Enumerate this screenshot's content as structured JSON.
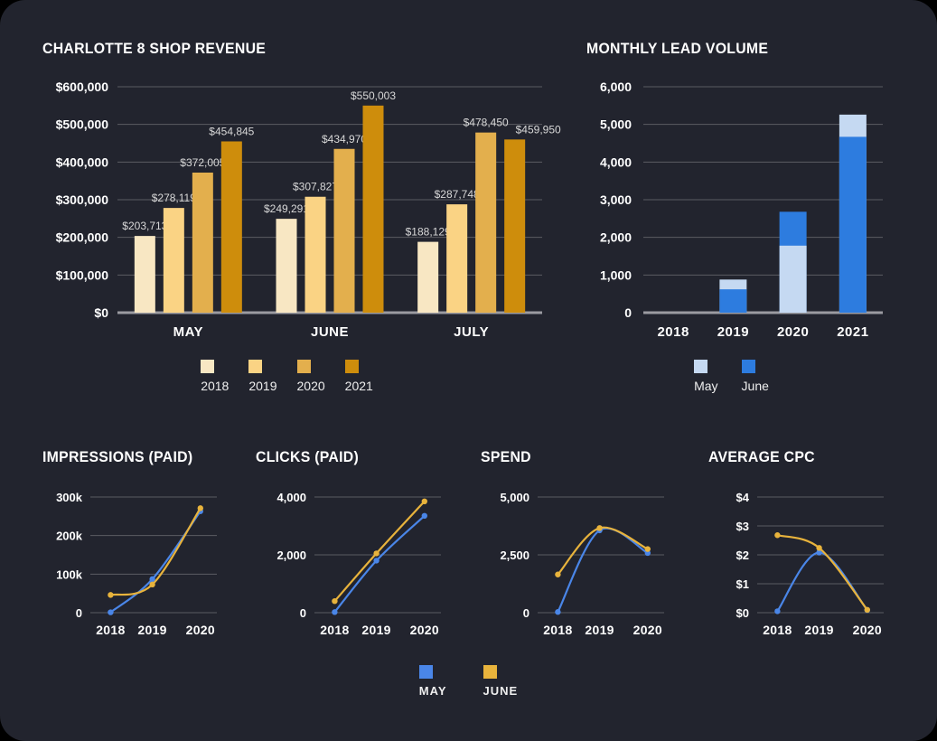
{
  "page": {
    "background": "#22242e",
    "gridline_color": "#5b5c63",
    "axis_color": "#9b9ba1",
    "text_color": "#ffffff",
    "value_label_color": "#d8d8d8"
  },
  "chart_data": [
    {
      "id": "revenue",
      "type": "bar",
      "title": "CHARLOTTE 8 SHOP REVENUE",
      "categories": [
        "MAY",
        "JUNE",
        "JULY"
      ],
      "ylim": [
        0,
        600000
      ],
      "yticks": [
        "$0",
        "$100,000",
        "$200,000",
        "$300,000",
        "$400,000",
        "$500,000",
        "$600,000"
      ],
      "grid": true,
      "legend_position": "bottom",
      "series": [
        {
          "name": "2018",
          "color": "#f8e7c3",
          "values": [
            203713,
            249291,
            188129
          ],
          "labels": [
            "$203,713",
            "$249,291",
            "$188,129"
          ]
        },
        {
          "name": "2019",
          "color": "#fad384",
          "values": [
            278119,
            307827,
            287748
          ],
          "labels": [
            "$278,119",
            "$307,827",
            "$287,748"
          ]
        },
        {
          "name": "2020",
          "color": "#e3af4d",
          "values": [
            372005,
            434970,
            478450
          ],
          "labels": [
            "$372,005",
            "$434,970",
            "$478,450"
          ]
        },
        {
          "name": "2021",
          "color": "#ce8d0c",
          "values": [
            454845,
            550003,
            459950
          ],
          "labels": [
            "$454,845",
            "$550,003",
            "$459,950"
          ]
        }
      ]
    },
    {
      "id": "leads",
      "type": "overlap-bar",
      "title": "MONTHLY LEAD VOLUME",
      "categories": [
        "2018",
        "2019",
        "2020",
        "2021"
      ],
      "ylim": [
        0,
        6000
      ],
      "yticks": [
        "0",
        "1,000",
        "2,000",
        "3,000",
        "4,000",
        "5,000",
        "6,000"
      ],
      "grid": true,
      "legend_position": "bottom",
      "series": [
        {
          "name": "May",
          "color": "#c5d9f2",
          "values": [
            0,
            880,
            1780,
            5260
          ]
        },
        {
          "name": "June",
          "color": "#2d7cdf",
          "values": [
            0,
            620,
            2680,
            4670
          ]
        }
      ]
    },
    {
      "id": "impressions",
      "type": "line",
      "title": "IMPRESSIONS (PAID)",
      "x": [
        "2018",
        "2019",
        "2020"
      ],
      "ylim": [
        0,
        300000
      ],
      "yticks": [
        "0",
        "100k",
        "200k",
        "300k"
      ],
      "grid": true,
      "series": [
        {
          "name": "MAY",
          "color": "#4a86e8",
          "values": [
            1000,
            87000,
            263000
          ]
        },
        {
          "name": "JUNE",
          "color": "#e8b33c",
          "values": [
            46000,
            73000,
            271000
          ]
        }
      ]
    },
    {
      "id": "clicks",
      "type": "line",
      "title": "CLICKS (PAID)",
      "x": [
        "2018",
        "2019",
        "2020"
      ],
      "ylim": [
        0,
        4000
      ],
      "yticks": [
        "0",
        "2,000",
        "4,000"
      ],
      "grid": true,
      "series": [
        {
          "name": "MAY",
          "color": "#4a86e8",
          "values": [
            20,
            1800,
            3350
          ]
        },
        {
          "name": "JUNE",
          "color": "#e8b33c",
          "values": [
            400,
            2050,
            3850
          ]
        }
      ]
    },
    {
      "id": "spend",
      "type": "line",
      "title": "SPEND",
      "x": [
        "2018",
        "2019",
        "2020"
      ],
      "ylim": [
        0,
        5000
      ],
      "yticks": [
        "0",
        "2,500",
        "5,000"
      ],
      "grid": true,
      "series": [
        {
          "name": "MAY",
          "color": "#4a86e8",
          "values": [
            30,
            3560,
            2580
          ]
        },
        {
          "name": "JUNE",
          "color": "#e8b33c",
          "values": [
            1650,
            3660,
            2750
          ]
        }
      ]
    },
    {
      "id": "avg_cpc",
      "type": "line",
      "title": "AVERAGE CPC",
      "x": [
        "2018",
        "2019",
        "2020"
      ],
      "ylim": [
        0,
        4
      ],
      "yticks": [
        "$0",
        "$1",
        "$2",
        "$3",
        "$4"
      ],
      "grid": true,
      "series": [
        {
          "name": "MAY",
          "color": "#4a86e8",
          "values": [
            0.05,
            2.08,
            0.09
          ]
        },
        {
          "name": "JUNE",
          "color": "#e8b33c",
          "values": [
            2.68,
            2.24,
            0.1
          ]
        }
      ]
    }
  ],
  "legends": {
    "months_bottom": [
      {
        "label": "MAY",
        "color": "#4a86e8"
      },
      {
        "label": "JUNE",
        "color": "#e8b33c"
      }
    ]
  }
}
